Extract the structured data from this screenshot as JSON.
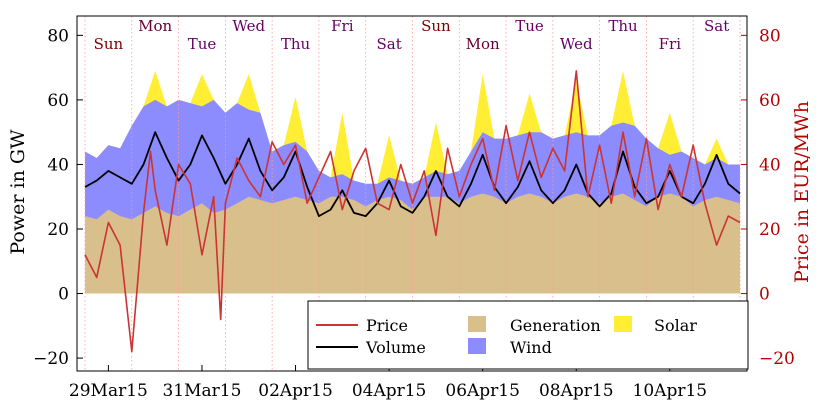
{
  "chart_data": {
    "type": "area",
    "ylabel_left": "Power in GW",
    "ylabel_right": "Price in EUR/MWh",
    "ylim": [
      -24,
      86
    ],
    "y_ticks": [
      -20,
      0,
      20,
      40,
      60,
      80
    ],
    "y_tick_labels": [
      "−20",
      "0",
      "20",
      "40",
      "60",
      "80"
    ],
    "x_days_range": [
      0,
      14
    ],
    "x_tick_days": [
      0.5,
      2.5,
      4.5,
      6.5,
      8.5,
      10.5,
      12.5
    ],
    "x_tick_labels": [
      "29Mar15",
      "31Mar15",
      "02Apr15",
      "04Apr15",
      "06Apr15",
      "08Apr15",
      "10Apr15"
    ],
    "day_labels": [
      "Sun",
      "Mon",
      "Tue",
      "Wed",
      "Thu",
      "Fri",
      "Sat",
      "Sun",
      "Mon",
      "Tue",
      "Wed",
      "Thu",
      "Fri",
      "Sat"
    ],
    "day_label_colors": [
      "#800000",
      "#660033",
      "#660066",
      "#660066",
      "#660066",
      "#660066",
      "#660066",
      "#800000",
      "#660033",
      "#660066",
      "#660066",
      "#660066",
      "#660066",
      "#660066"
    ],
    "legend": [
      {
        "label": "Price",
        "kind": "line",
        "color": "#cc3333"
      },
      {
        "label": "Volume",
        "kind": "line",
        "color": "#000000"
      },
      {
        "label": "Generation",
        "kind": "area",
        "color": "#d9bf8c"
      },
      {
        "label": "Wind",
        "kind": "area",
        "color": "#8c8cff"
      },
      {
        "label": "Solar",
        "kind": "area",
        "color": "#ffee33"
      }
    ],
    "colors": {
      "generation": "#d9bf8c",
      "wind": "#8c8cff",
      "solar": "#ffee33",
      "price": "#cc3333",
      "volume": "#000000",
      "right_axis": "#b30000"
    },
    "series": [
      {
        "name": "Generation",
        "x": [
          0,
          0.25,
          0.5,
          0.75,
          1,
          1.25,
          1.5,
          1.75,
          2,
          2.25,
          2.5,
          2.75,
          3,
          3.25,
          3.5,
          3.75,
          4,
          4.25,
          4.5,
          4.75,
          5,
          5.25,
          5.5,
          5.75,
          6,
          6.25,
          6.5,
          6.75,
          7,
          7.25,
          7.5,
          7.75,
          8,
          8.25,
          8.5,
          8.75,
          9,
          9.25,
          9.5,
          9.75,
          10,
          10.25,
          10.5,
          10.75,
          11,
          11.25,
          11.5,
          11.75,
          12,
          12.25,
          12.5,
          12.75,
          13,
          13.25,
          13.5,
          13.75,
          14
        ],
        "values": [
          24,
          23,
          26,
          24,
          23,
          25,
          27,
          25,
          24,
          26,
          28,
          25,
          26,
          28,
          30,
          29,
          28,
          29,
          30,
          29,
          28,
          30,
          30,
          29,
          27,
          29,
          30,
          29,
          26,
          30,
          30,
          30,
          28,
          30,
          31,
          30,
          28,
          30,
          31,
          30,
          28,
          30,
          31,
          30,
          28,
          30,
          31,
          29,
          27,
          30,
          31,
          30,
          27,
          29,
          30,
          29,
          28
        ]
      },
      {
        "name": "Wind",
        "x": [
          0,
          0.25,
          0.5,
          0.75,
          1,
          1.25,
          1.5,
          1.75,
          2,
          2.25,
          2.5,
          2.75,
          3,
          3.25,
          3.5,
          3.75,
          4,
          4.25,
          4.5,
          4.75,
          5,
          5.25,
          5.5,
          5.75,
          6,
          6.25,
          6.5,
          6.75,
          7,
          7.25,
          7.5,
          7.75,
          8,
          8.25,
          8.5,
          8.75,
          9,
          9.25,
          9.5,
          9.75,
          10,
          10.25,
          10.5,
          10.75,
          11,
          11.25,
          11.5,
          11.75,
          12,
          12.25,
          12.5,
          12.75,
          13,
          13.25,
          13.5,
          13.75,
          14
        ],
        "values": [
          44,
          42,
          46,
          45,
          52,
          58,
          60,
          58,
          60,
          59,
          58,
          60,
          56,
          59,
          57,
          56,
          44,
          46,
          47,
          44,
          38,
          36,
          37,
          35,
          34,
          34,
          36,
          35,
          34,
          36,
          38,
          37,
          38,
          44,
          50,
          48,
          48,
          49,
          50,
          50,
          48,
          49,
          50,
          49,
          49,
          52,
          53,
          52,
          48,
          45,
          43,
          44,
          42,
          40,
          42,
          40,
          40
        ]
      },
      {
        "name": "Solar",
        "x": [
          0,
          0.25,
          0.5,
          0.75,
          1,
          1.25,
          1.5,
          1.75,
          2,
          2.25,
          2.5,
          2.75,
          3,
          3.25,
          3.5,
          3.75,
          4,
          4.25,
          4.5,
          4.75,
          5,
          5.25,
          5.5,
          5.75,
          6,
          6.25,
          6.5,
          6.75,
          7,
          7.25,
          7.5,
          7.75,
          8,
          8.25,
          8.5,
          8.75,
          9,
          9.25,
          9.5,
          9.75,
          10,
          10.25,
          10.5,
          10.75,
          11,
          11.25,
          11.5,
          11.75,
          12,
          12.25,
          12.5,
          12.75,
          13,
          13.25,
          13.5,
          13.75,
          14
        ],
        "values": [
          44,
          42,
          46,
          45,
          52,
          58,
          69,
          58,
          60,
          59,
          68,
          60,
          56,
          59,
          68,
          56,
          44,
          46,
          61,
          44,
          38,
          36,
          56,
          35,
          34,
          34,
          49,
          35,
          34,
          36,
          53,
          37,
          38,
          44,
          68,
          48,
          48,
          49,
          62,
          50,
          48,
          49,
          66,
          49,
          49,
          52,
          69,
          52,
          48,
          45,
          56,
          44,
          42,
          40,
          48,
          40,
          40
        ]
      },
      {
        "name": "Volume",
        "x": [
          0,
          0.25,
          0.5,
          0.75,
          1,
          1.25,
          1.5,
          1.75,
          2,
          2.25,
          2.5,
          2.75,
          3,
          3.25,
          3.5,
          3.75,
          4,
          4.25,
          4.5,
          4.75,
          5,
          5.25,
          5.5,
          5.75,
          6,
          6.25,
          6.5,
          6.75,
          7,
          7.25,
          7.5,
          7.75,
          8,
          8.25,
          8.5,
          8.75,
          9,
          9.25,
          9.5,
          9.75,
          10,
          10.25,
          10.5,
          10.75,
          11,
          11.25,
          11.5,
          11.75,
          12,
          12.25,
          12.5,
          12.75,
          13,
          13.25,
          13.5,
          13.75,
          14
        ],
        "values": [
          33,
          35,
          38,
          36,
          34,
          40,
          50,
          42,
          35,
          40,
          49,
          42,
          34,
          40,
          48,
          38,
          32,
          36,
          44,
          33,
          24,
          26,
          32,
          25,
          24,
          28,
          35,
          27,
          25,
          30,
          38,
          30,
          27,
          34,
          43,
          33,
          28,
          33,
          41,
          32,
          28,
          32,
          40,
          31,
          27,
          31,
          44,
          33,
          28,
          30,
          38,
          30,
          28,
          34,
          43,
          34,
          31
        ]
      },
      {
        "name": "Price",
        "x": [
          0,
          0.25,
          0.5,
          0.75,
          1,
          1.25,
          1.4,
          1.5,
          1.75,
          2,
          2.25,
          2.5,
          2.75,
          2.9,
          3,
          3.25,
          3.5,
          3.75,
          4,
          4.25,
          4.5,
          4.75,
          5,
          5.25,
          5.5,
          5.75,
          6,
          6.25,
          6.5,
          6.75,
          7,
          7.25,
          7.5,
          7.75,
          8,
          8.25,
          8.5,
          8.75,
          9,
          9.25,
          9.5,
          9.75,
          10,
          10.25,
          10.5,
          10.75,
          11,
          11.25,
          11.5,
          11.75,
          12,
          12.25,
          12.5,
          12.75,
          13,
          13.25,
          13.5,
          13.75,
          14
        ],
        "values": [
          12,
          5,
          22,
          15,
          -18,
          25,
          44,
          32,
          15,
          40,
          34,
          12,
          30,
          -8,
          28,
          42,
          35,
          30,
          47,
          40,
          46,
          28,
          36,
          44,
          26,
          38,
          45,
          28,
          26,
          40,
          28,
          38,
          18,
          45,
          30,
          40,
          48,
          32,
          52,
          35,
          50,
          36,
          45,
          38,
          69,
          30,
          46,
          28,
          50,
          30,
          48,
          26,
          40,
          30,
          46,
          28,
          15,
          24,
          22
        ]
      }
    ]
  }
}
